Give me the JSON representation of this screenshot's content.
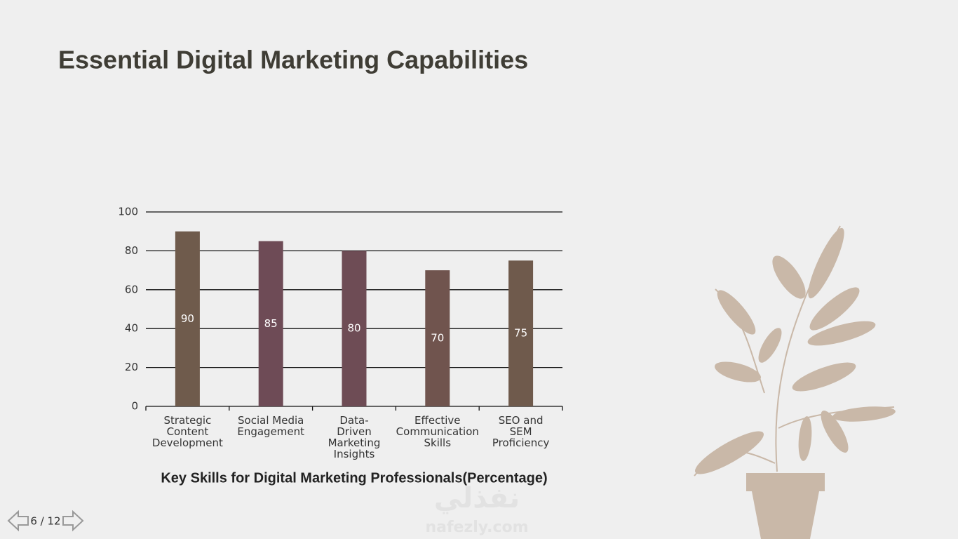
{
  "slide": {
    "title": "Essential Digital Marketing Capabilities",
    "page": "6 / 12",
    "watermark": [
      "نفذلي",
      "nafezly.com"
    ]
  },
  "chart_data": {
    "type": "bar",
    "title": "Key Skills for Digital Marketing Professionals(Percentage)",
    "categories": [
      "Strategic Content Development",
      "Social Media Engagement",
      "Data-Driven Marketing Insights",
      "Effective Communication Skills",
      "SEO and SEM Proficiency"
    ],
    "values": [
      90,
      85,
      80,
      70,
      75
    ],
    "colors": [
      "#6f5b4c",
      "#6e4b56",
      "#6e4c55",
      "#70544e",
      "#6f5a4c"
    ],
    "ylim": [
      0,
      100
    ],
    "yticks": [
      0,
      20,
      40,
      60,
      80,
      100
    ],
    "grid": true
  }
}
